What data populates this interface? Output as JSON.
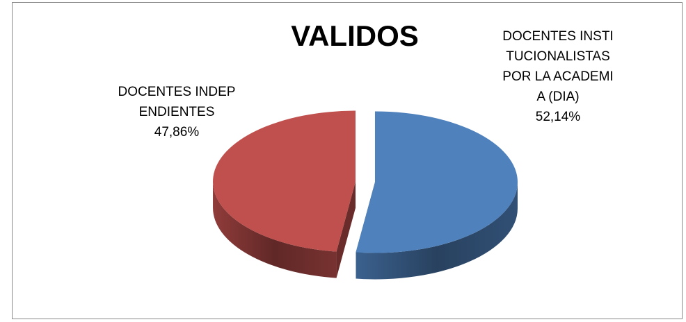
{
  "chart_data": {
    "type": "pie",
    "title": "VALIDOS",
    "categories": [
      "DOCENTES INSTITUCIONALISTAS POR LA ACADEMIA (DIA)",
      "DOCENTES INDEPENDIENTES"
    ],
    "values": [
      52.14,
      47.86
    ],
    "value_labels": [
      "52,14%",
      "47,86%"
    ],
    "colors": [
      "#4f81bd",
      "#c0504d"
    ]
  }
}
